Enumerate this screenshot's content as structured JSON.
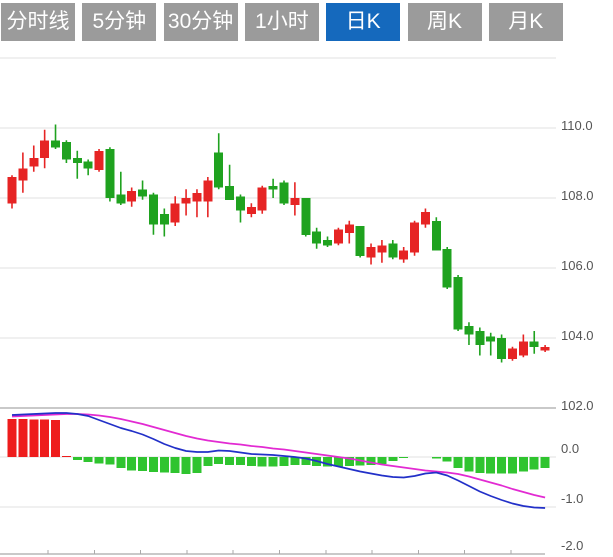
{
  "tabbar": {
    "items": [
      {
        "id": "timeline",
        "label": "分时线",
        "active": false
      },
      {
        "id": "5min",
        "label": "5分钟",
        "active": false
      },
      {
        "id": "30min",
        "label": "30分钟",
        "active": false
      },
      {
        "id": "1hour",
        "label": "1小时",
        "active": false
      },
      {
        "id": "daily-k",
        "label": "日K",
        "active": true
      },
      {
        "id": "weekly-k",
        "label": "周K",
        "active": false
      },
      {
        "id": "monthly-k",
        "label": "月K",
        "active": false
      }
    ],
    "colors": {
      "active_bg": "#1569bd",
      "inactive_bg": "#9b9b9b",
      "text": "#ffffff"
    }
  },
  "chart_data": {
    "type": "candlestick",
    "panels": [
      "price",
      "macd"
    ],
    "legend_position": "none",
    "grid": true,
    "price_axis": {
      "side": "right",
      "range": [
        101.5,
        112.3
      ],
      "ticks": [
        {
          "label": "",
          "value": 112
        },
        {
          "label": "110.0",
          "value": 110
        },
        {
          "label": "108.0",
          "value": 108
        },
        {
          "label": "106.0",
          "value": 106
        },
        {
          "label": "104.0",
          "value": 104
        },
        {
          "label": "102.0",
          "value": 102,
          "heavy": true
        }
      ]
    },
    "macd_axis": {
      "side": "right",
      "range": [
        -2.0,
        1.0
      ],
      "ticks": [
        {
          "label": "0.0",
          "value": 0
        },
        {
          "label": "-1.0",
          "value": -1
        },
        {
          "label": "-2.0",
          "value": -2,
          "axis": true
        }
      ]
    },
    "colors": {
      "up": "#e62424",
      "down": "#1fa21f",
      "hist_up": "#ee1c1c",
      "hist_down": "#2fc42f",
      "dif_line": "#2230c8",
      "dea_line": "#e22ad2",
      "grid": "#e2e2e2",
      "grid_heavy": "#c9c9c9",
      "axis_text": "#555555",
      "axis_tick": "#aaaaaa"
    },
    "candles_ohlc": [
      [
        107.85,
        108.65,
        107.7,
        108.6
      ],
      [
        108.5,
        109.3,
        108.15,
        108.85
      ],
      [
        108.9,
        109.5,
        108.75,
        109.15
      ],
      [
        109.15,
        109.95,
        108.85,
        109.65
      ],
      [
        109.65,
        110.1,
        109.4,
        109.45
      ],
      [
        109.6,
        109.65,
        109.0,
        109.1
      ],
      [
        109.15,
        109.35,
        108.55,
        109.0
      ],
      [
        109.05,
        109.1,
        108.65,
        108.85
      ],
      [
        108.8,
        109.4,
        108.75,
        109.35
      ],
      [
        109.4,
        109.45,
        107.9,
        108.0
      ],
      [
        108.1,
        108.75,
        107.8,
        107.85
      ],
      [
        107.9,
        108.3,
        107.75,
        108.2
      ],
      [
        108.25,
        108.5,
        107.95,
        108.05
      ],
      [
        108.1,
        108.15,
        106.95,
        107.25
      ],
      [
        107.55,
        107.7,
        106.9,
        107.25
      ],
      [
        107.3,
        108.05,
        107.2,
        107.85
      ],
      [
        107.85,
        108.25,
        107.5,
        108.0
      ],
      [
        107.9,
        108.25,
        107.45,
        108.15
      ],
      [
        107.9,
        108.6,
        107.45,
        108.5
      ],
      [
        109.3,
        109.85,
        108.25,
        108.3
      ],
      [
        108.35,
        108.95,
        107.95,
        107.95
      ],
      [
        108.05,
        108.1,
        107.3,
        107.65
      ],
      [
        107.55,
        107.85,
        107.45,
        107.75
      ],
      [
        107.65,
        108.35,
        107.55,
        108.3
      ],
      [
        108.35,
        108.55,
        108.0,
        108.25
      ],
      [
        108.45,
        108.5,
        107.8,
        107.85
      ],
      [
        107.8,
        108.45,
        107.5,
        108.0
      ],
      [
        108.0,
        108.0,
        106.9,
        106.95
      ],
      [
        107.05,
        107.15,
        106.55,
        106.7
      ],
      [
        106.8,
        106.9,
        106.6,
        106.65
      ],
      [
        106.7,
        107.15,
        106.65,
        107.1
      ],
      [
        107.0,
        107.35,
        106.7,
        107.25
      ],
      [
        107.2,
        107.2,
        106.3,
        106.35
      ],
      [
        106.3,
        106.7,
        106.1,
        106.6
      ],
      [
        106.45,
        106.8,
        106.15,
        106.65
      ],
      [
        106.7,
        106.8,
        106.25,
        106.3
      ],
      [
        106.25,
        106.6,
        106.15,
        106.5
      ],
      [
        106.45,
        107.35,
        106.35,
        107.3
      ],
      [
        107.25,
        107.7,
        107.15,
        107.6
      ],
      [
        107.35,
        107.45,
        106.5,
        106.5
      ],
      [
        106.55,
        106.6,
        105.4,
        105.45
      ],
      [
        105.75,
        105.8,
        104.2,
        104.25
      ],
      [
        104.35,
        104.45,
        103.8,
        104.1
      ],
      [
        104.2,
        104.3,
        103.5,
        103.8
      ],
      [
        104.05,
        104.15,
        103.5,
        103.9
      ],
      [
        104.0,
        104.1,
        103.3,
        103.4
      ],
      [
        103.4,
        103.75,
        103.35,
        103.7
      ],
      [
        103.5,
        104.1,
        103.45,
        103.9
      ],
      [
        103.9,
        104.2,
        103.55,
        103.75
      ],
      [
        103.65,
        103.8,
        103.6,
        103.75
      ]
    ],
    "macd": {
      "histogram": [
        0.76,
        0.76,
        0.75,
        0.75,
        0.74,
        0.02,
        -0.06,
        -0.1,
        -0.13,
        -0.15,
        -0.22,
        -0.27,
        -0.28,
        -0.3,
        -0.31,
        -0.32,
        -0.34,
        -0.32,
        -0.18,
        -0.14,
        -0.16,
        -0.16,
        -0.18,
        -0.19,
        -0.19,
        -0.18,
        -0.16,
        -0.16,
        -0.18,
        -0.19,
        -0.19,
        -0.18,
        -0.17,
        -0.16,
        -0.14,
        -0.08,
        -0.02,
        0,
        0,
        -0.03,
        -0.09,
        -0.22,
        -0.29,
        -0.32,
        -0.33,
        -0.33,
        -0.33,
        -0.29,
        -0.25,
        -0.22
      ],
      "dif": [
        0.84,
        0.85,
        0.86,
        0.87,
        0.88,
        0.88,
        0.86,
        0.82,
        0.74,
        0.66,
        0.58,
        0.52,
        0.45,
        0.36,
        0.26,
        0.18,
        0.12,
        0.1,
        0.1,
        0.13,
        0.12,
        0.09,
        0.06,
        0.05,
        0.04,
        0.02,
        0,
        -0.03,
        -0.08,
        -0.14,
        -0.19,
        -0.24,
        -0.29,
        -0.33,
        -0.37,
        -0.4,
        -0.41,
        -0.38,
        -0.33,
        -0.31,
        -0.37,
        -0.47,
        -0.58,
        -0.69,
        -0.78,
        -0.86,
        -0.93,
        -0.98,
        -1.01,
        -1.02
      ],
      "dea": [
        0.81,
        0.82,
        0.83,
        0.84,
        0.85,
        0.86,
        0.86,
        0.85,
        0.83,
        0.8,
        0.76,
        0.71,
        0.66,
        0.6,
        0.54,
        0.48,
        0.42,
        0.37,
        0.33,
        0.3,
        0.27,
        0.25,
        0.22,
        0.2,
        0.17,
        0.15,
        0.12,
        0.09,
        0.06,
        0.03,
        0,
        -0.03,
        -0.07,
        -0.11,
        -0.15,
        -0.18,
        -0.21,
        -0.24,
        -0.27,
        -0.29,
        -0.31,
        -0.34,
        -0.39,
        -0.45,
        -0.51,
        -0.57,
        -0.64,
        -0.7,
        -0.76,
        -0.81
      ]
    }
  }
}
